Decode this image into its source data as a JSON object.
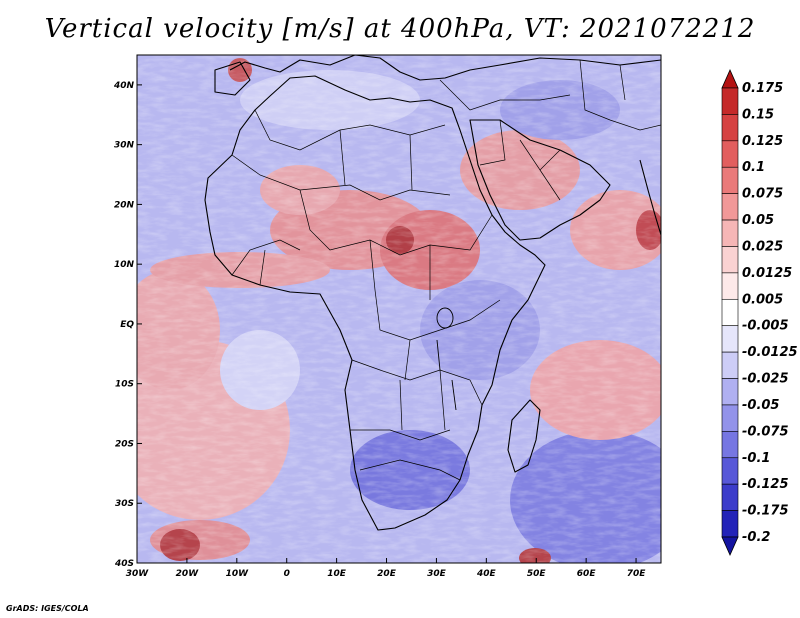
{
  "title": "Vertical velocity [m/s] at 400hPa, VT: 2021072212",
  "credit": "GrADS: IGES/COLA",
  "map": {
    "lon_range": [
      -30,
      75
    ],
    "lat_range": [
      -40,
      45
    ],
    "x_ticks": [
      "30W",
      "20W",
      "10W",
      "0",
      "10E",
      "20E",
      "30E",
      "40E",
      "50E",
      "60E",
      "70E"
    ],
    "y_ticks": [
      "40N",
      "30N",
      "20N",
      "10N",
      "EQ",
      "10S",
      "20S",
      "30S",
      "40S"
    ],
    "x_tick_values": [
      -30,
      -20,
      -10,
      0,
      10,
      20,
      30,
      40,
      50,
      60,
      70
    ],
    "y_tick_values": [
      40,
      30,
      20,
      10,
      0,
      -10,
      -20,
      -30,
      -40
    ]
  },
  "colorbar": {
    "levels": [
      "0.175",
      "0.15",
      "0.125",
      "0.1",
      "0.075",
      "0.05",
      "0.025",
      "0.0125",
      "0.005",
      "-0.005",
      "-0.0125",
      "-0.025",
      "-0.05",
      "-0.075",
      "-0.1",
      "-0.125",
      "-0.175",
      "-0.2"
    ],
    "colors": [
      "#b31212",
      "#c52a2a",
      "#d64242",
      "#e25e5e",
      "#ea7a7a",
      "#f19898",
      "#f6b6b6",
      "#fad2d2",
      "#fde9e9",
      "#ffffff",
      "#e6e6fb",
      "#cdcdf7",
      "#b0b0f1",
      "#9393ea",
      "#7676e2",
      "#5858d8",
      "#3c3cca",
      "#2323b8",
      "#1414a0"
    ]
  }
}
